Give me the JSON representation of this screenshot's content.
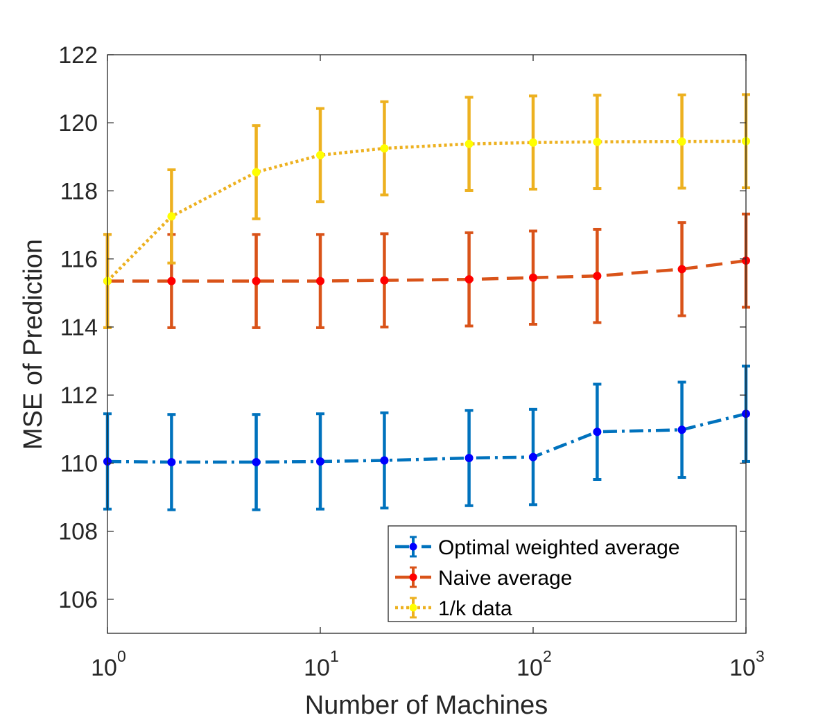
{
  "chart_data": {
    "type": "line",
    "x_scale": "log",
    "x": [
      1,
      2,
      5,
      10,
      20,
      50,
      100,
      200,
      500,
      1000
    ],
    "xlim": [
      1,
      1000
    ],
    "ylim": [
      105,
      122
    ],
    "xlabel": "Number of Machines",
    "ylabel": "MSE of Prediction",
    "grid": false,
    "legend_position": "bottom-right",
    "x_ticks": [
      {
        "value": 1,
        "base": "10",
        "exp": "0"
      },
      {
        "value": 10,
        "base": "10",
        "exp": "1"
      },
      {
        "value": 100,
        "base": "10",
        "exp": "2"
      },
      {
        "value": 1000,
        "base": "10",
        "exp": "3"
      }
    ],
    "y_ticks": [
      {
        "value": 106,
        "label": "106"
      },
      {
        "value": 108,
        "label": "108"
      },
      {
        "value": 110,
        "label": "110"
      },
      {
        "value": 112,
        "label": "112"
      },
      {
        "value": 114,
        "label": "114"
      },
      {
        "value": 116,
        "label": "116"
      },
      {
        "value": 118,
        "label": "118"
      },
      {
        "value": 120,
        "label": "120"
      },
      {
        "value": 122,
        "label": "122"
      }
    ],
    "series": [
      {
        "name": "Optimal weighted average",
        "line_color": "#0072BD",
        "marker_color": "#0000FF",
        "dash": "dashdot",
        "values": [
          110.05,
          110.03,
          110.03,
          110.05,
          110.08,
          110.15,
          110.18,
          110.92,
          110.98,
          111.45
        ],
        "error": [
          1.4,
          1.4,
          1.4,
          1.4,
          1.4,
          1.4,
          1.4,
          1.4,
          1.4,
          1.4
        ]
      },
      {
        "name": "Naive average",
        "line_color": "#D95319",
        "marker_color": "#FF0000",
        "dash": "dashed",
        "values": [
          115.35,
          115.35,
          115.35,
          115.35,
          115.37,
          115.4,
          115.45,
          115.5,
          115.7,
          115.95
        ],
        "error": [
          1.37,
          1.37,
          1.37,
          1.37,
          1.37,
          1.37,
          1.37,
          1.37,
          1.37,
          1.37
        ]
      },
      {
        "name": "1/k data",
        "line_color": "#EDB120",
        "marker_color": "#FFFF00",
        "dash": "dotted",
        "values": [
          115.35,
          117.25,
          118.55,
          119.05,
          119.25,
          119.38,
          119.42,
          119.44,
          119.45,
          119.46
        ],
        "error": [
          1.37,
          1.37,
          1.37,
          1.37,
          1.37,
          1.37,
          1.37,
          1.37,
          1.37,
          1.37
        ]
      }
    ]
  }
}
